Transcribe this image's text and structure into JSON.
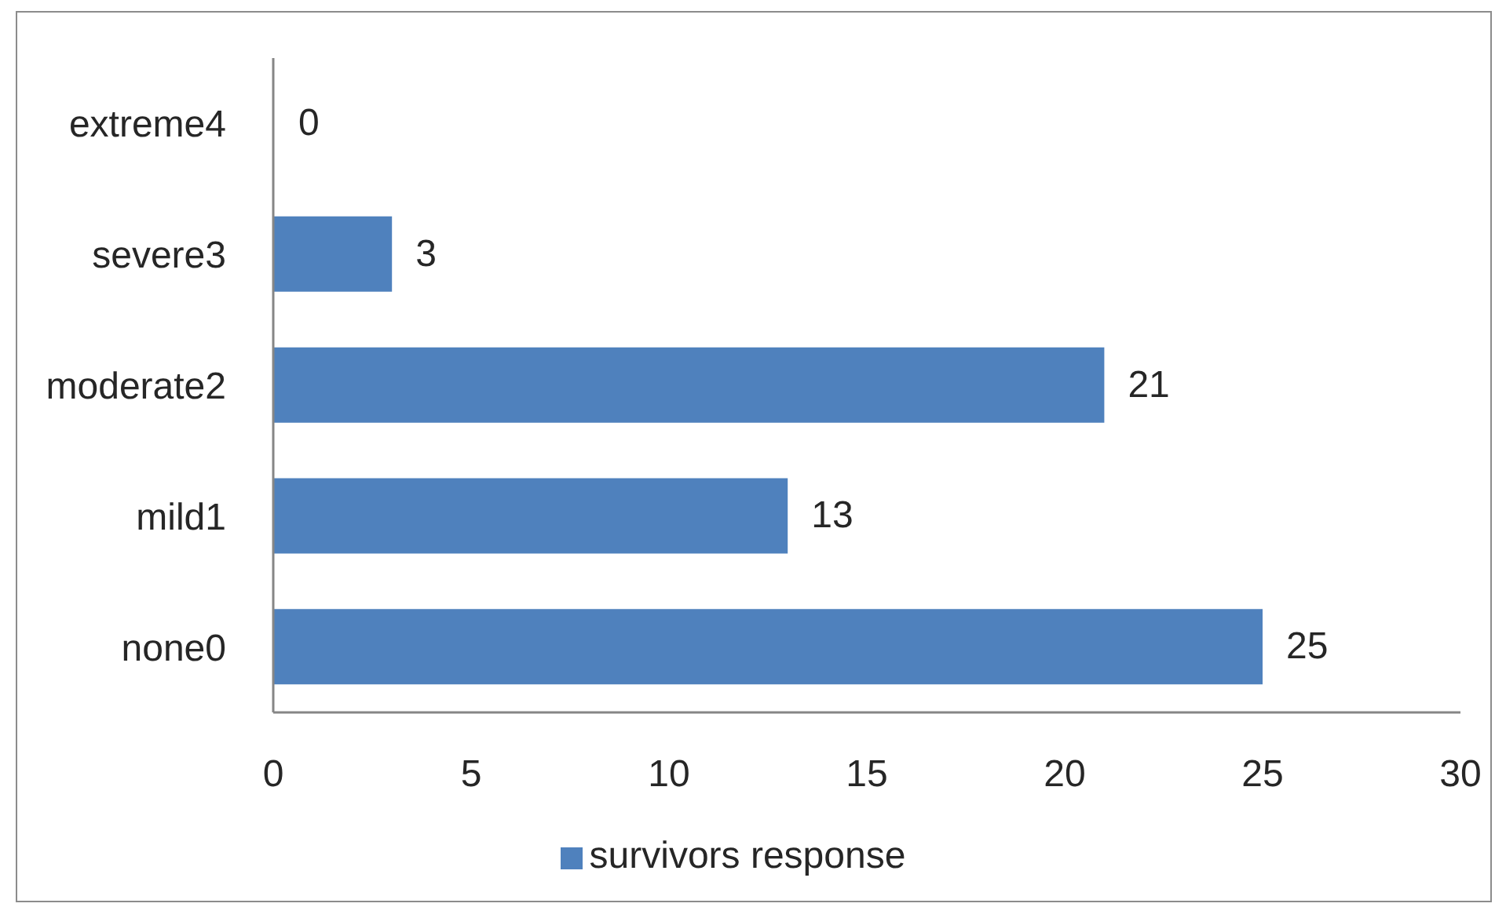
{
  "chart_data": {
    "type": "bar",
    "orientation": "horizontal",
    "categories": [
      "extreme4",
      "severe3",
      "moderate2",
      "mild1",
      "none0"
    ],
    "series": [
      {
        "name": "survivors response",
        "color": "#4f81bd",
        "values": [
          0,
          3,
          21,
          13,
          25
        ]
      }
    ],
    "xlim": [
      0,
      30
    ],
    "xticks": [
      0,
      5,
      10,
      15,
      20,
      25,
      30
    ],
    "data_labels": true,
    "legend": "bottom",
    "grid": false
  }
}
